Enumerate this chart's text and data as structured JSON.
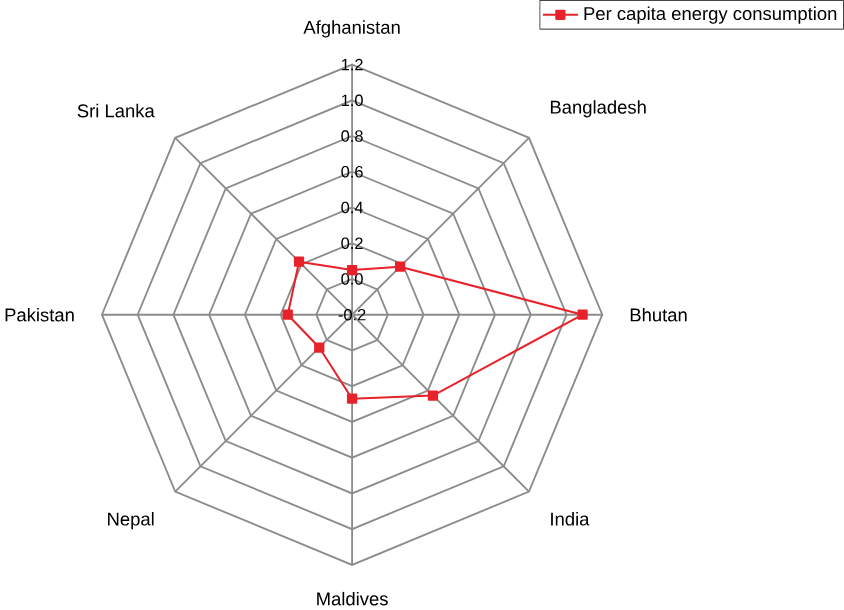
{
  "chart_data": {
    "type": "radar",
    "categories": [
      "Afghanistan",
      "Bangladesh",
      "Bhutan",
      "India",
      "Maldives",
      "Nepal",
      "Pakistan",
      "Sri Lanka"
    ],
    "series": [
      {
        "name": "Per capita energy consumption",
        "color": "#e8222a",
        "values": [
          0.05,
          0.18,
          1.09,
          0.44,
          0.27,
          0.06,
          0.16,
          0.22
        ]
      }
    ],
    "ylim": [
      -0.2,
      1.2
    ],
    "yticks": [
      -0.2,
      {
        "value": 0,
        "label": "0.0"
      },
      0.2,
      0.4,
      0.6,
      0.8,
      {
        "value": 1,
        "label": "1.0"
      },
      1.2
    ],
    "grid": true,
    "legend": "top right",
    "marker": "square"
  }
}
